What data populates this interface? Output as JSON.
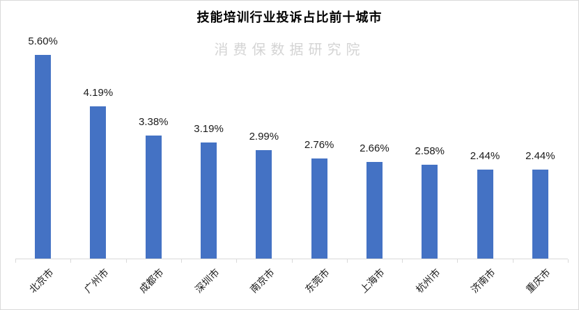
{
  "chart_data": {
    "type": "bar",
    "title": "技能培训行业投诉占比前十城市",
    "watermark": "消费保数据研究院",
    "categories": [
      "北京市",
      "广州市",
      "成都市",
      "深圳市",
      "南京市",
      "东莞市",
      "上海市",
      "杭州市",
      "济南市",
      "重庆市"
    ],
    "values": [
      5.6,
      4.19,
      3.38,
      3.19,
      2.99,
      2.76,
      2.66,
      2.58,
      2.44,
      2.44
    ],
    "value_labels": [
      "5.60%",
      "4.19%",
      "3.38%",
      "3.19%",
      "2.99%",
      "2.76%",
      "2.66%",
      "2.58%",
      "2.44%",
      "2.44%"
    ],
    "xlabel": "",
    "ylabel": "",
    "ylim": [
      0,
      5.6
    ],
    "grid": false,
    "legend": false,
    "colors": {
      "bar": "#4472c4",
      "axis": "#d9d9d9",
      "label_text": "#1a1a1a",
      "title_text": "#000000",
      "watermark_text": "#d4d4d4"
    }
  }
}
